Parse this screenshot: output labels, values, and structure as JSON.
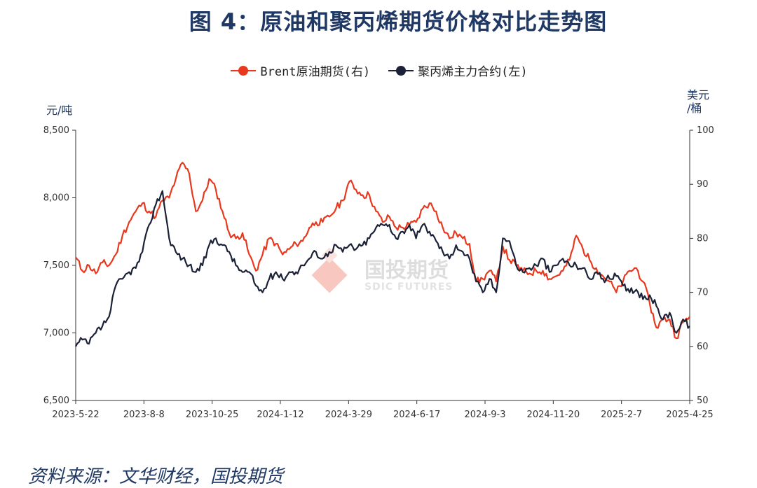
{
  "title": "图 4：原油和聚丙烯期货价格对比走势图",
  "source": "资料来源：文华财经，国投期货",
  "watermark": {
    "cn": "国投期货",
    "en": "SDIC FUTURES"
  },
  "colors": {
    "brent": "#e8391e",
    "pp": "#1b2238",
    "title": "#1f3864",
    "watermark": "#e8391e"
  },
  "chart_data": {
    "type": "line",
    "x_ticks": [
      "2023-5-22",
      "2023-8-8",
      "2023-10-25",
      "2024-1-12",
      "2024-3-29",
      "2024-6-17",
      "2024-9-3",
      "2024-11-20",
      "2025-2-7",
      "2025-4-25"
    ],
    "left_axis": {
      "unit": "元/吨",
      "ylim": [
        6500,
        8500
      ],
      "ticks": [
        "8,500",
        "8,000",
        "7,500",
        "7,000",
        "6,500"
      ],
      "tick_values": [
        8500,
        8000,
        7500,
        7000,
        6500
      ]
    },
    "right_axis": {
      "unit_line1": "美元",
      "unit_line2": "/桶",
      "ylim": [
        50,
        100
      ],
      "ticks": [
        "100",
        "90",
        "80",
        "70",
        "60",
        "50"
      ],
      "tick_values": [
        100,
        90,
        80,
        70,
        60,
        50
      ]
    },
    "series": [
      {
        "name": "Brent原油期货(右)",
        "axis": "right",
        "values": [
          76.5,
          74,
          75,
          73.5,
          75.5,
          75,
          77,
          80.5,
          83,
          85,
          86.5,
          85,
          84,
          87,
          87.5,
          91,
          94,
          92,
          85,
          87,
          91,
          89,
          85,
          81,
          80,
          81,
          77,
          74,
          77,
          80,
          79,
          77,
          78,
          79,
          79.5,
          82,
          83,
          83,
          84,
          85.5,
          87,
          90.5,
          89,
          88,
          88,
          85,
          83,
          84,
          82,
          82,
          82.5,
          83,
          85.5,
          86.5,
          85,
          82,
          80,
          81,
          80,
          79,
          72,
          72.5,
          74,
          72,
          78.5,
          76,
          75,
          74,
          73.5,
          74,
          74,
          72.5,
          73,
          74,
          76,
          80.5,
          78,
          76,
          74.5,
          73,
          72,
          70,
          72,
          74,
          74.5,
          72,
          68,
          63.5,
          65,
          65,
          61.5,
          64.5,
          65.5
        ]
      },
      {
        "name": "聚丙烯主力合约(左)",
        "axis": "left",
        "values": [
          6900,
          6950,
          6920,
          7000,
          7050,
          7120,
          7350,
          7400,
          7450,
          7480,
          7600,
          7800,
          7950,
          8050,
          7700,
          7600,
          7550,
          7500,
          7450,
          7500,
          7650,
          7700,
          7650,
          7600,
          7500,
          7450,
          7450,
          7350,
          7300,
          7400,
          7450,
          7400,
          7450,
          7450,
          7500,
          7550,
          7600,
          7550,
          7600,
          7650,
          7600,
          7650,
          7620,
          7650,
          7700,
          7780,
          7800,
          7800,
          7700,
          7750,
          7800,
          7700,
          7800,
          7750,
          7680,
          7600,
          7550,
          7650,
          7600,
          7550,
          7380,
          7300,
          7400,
          7300,
          7700,
          7680,
          7500,
          7450,
          7480,
          7500,
          7550,
          7450,
          7500,
          7550,
          7500,
          7500,
          7480,
          7400,
          7450,
          7400,
          7400,
          7420,
          7350,
          7300,
          7320,
          7250,
          7280,
          7200,
          7100,
          7150,
          7000,
          7100,
          7050
        ]
      }
    ]
  }
}
